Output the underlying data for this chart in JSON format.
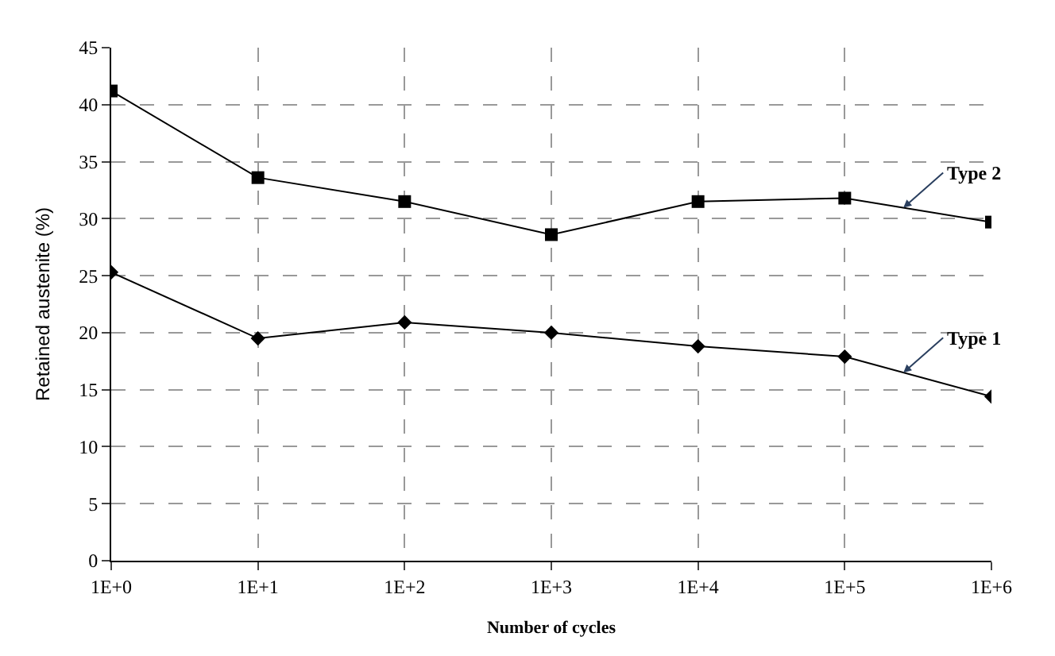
{
  "chart_data": {
    "type": "line",
    "xlabel": "Number of cycles",
    "ylabel": "Retained austenite (%)",
    "categories": [
      "1E+0",
      "1E+1",
      "1E+2",
      "1E+3",
      "1E+4",
      "1E+5",
      "1E+6"
    ],
    "series": [
      {
        "name": "Type 2",
        "color": "#000000",
        "marker": "square",
        "values": [
          41.2,
          33.6,
          31.5,
          28.6,
          31.5,
          31.8,
          29.7
        ]
      },
      {
        "name": "Type 1",
        "color": "#000000",
        "marker": "diamond",
        "values": [
          25.3,
          19.5,
          20.9,
          20.0,
          18.8,
          17.9,
          14.4
        ]
      }
    ],
    "ylim": [
      0,
      45
    ],
    "yticks": [
      0,
      5,
      10,
      15,
      20,
      25,
      30,
      35,
      40,
      45
    ],
    "grid": true,
    "legend": false,
    "line_style": "solid"
  }
}
